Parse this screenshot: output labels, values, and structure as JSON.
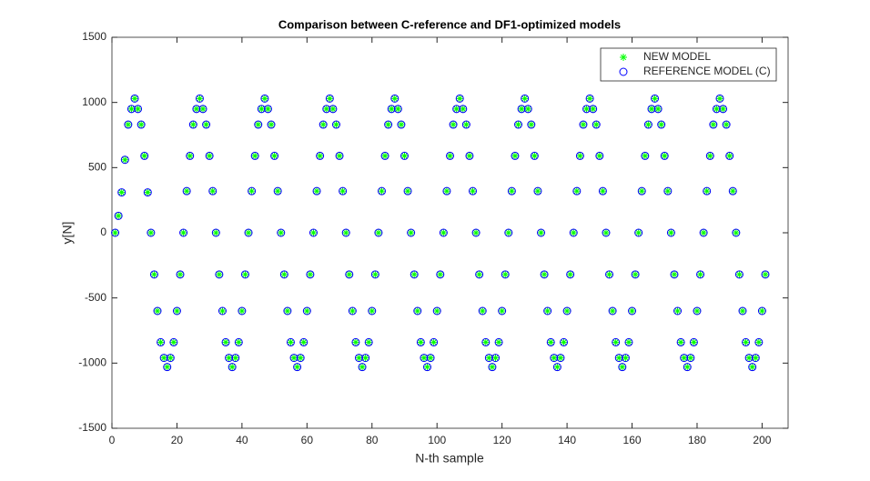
{
  "chart_data": {
    "type": "scatter",
    "title": "Comparison between C-reference and DF1-optimized models",
    "xlabel": "N-th sample",
    "ylabel": "y[N]",
    "xlim": [
      0,
      208
    ],
    "xticks": [
      0,
      20,
      40,
      60,
      80,
      100,
      120,
      140,
      160,
      180,
      200
    ],
    "ylim": [
      -1500,
      1500
    ],
    "yticks": [
      -1500,
      -1000,
      -500,
      0,
      500,
      1000,
      1500
    ],
    "legend": "top-right",
    "x": [
      1,
      2,
      3,
      4,
      5,
      6,
      7,
      8,
      9,
      10,
      11,
      12,
      13,
      14,
      15,
      16,
      17,
      18,
      19,
      20,
      21,
      22,
      23,
      24,
      25,
      26,
      27,
      28,
      29,
      30,
      31,
      32,
      33,
      34,
      35,
      36,
      37,
      38,
      39,
      40,
      41,
      42,
      43,
      44,
      45,
      46,
      47,
      48,
      49,
      50,
      51,
      52,
      53,
      54,
      55,
      56,
      57,
      58,
      59,
      60,
      61,
      62,
      63,
      64,
      65,
      66,
      67,
      68,
      69,
      70,
      71,
      72,
      73,
      74,
      75,
      76,
      77,
      78,
      79,
      80,
      81,
      82,
      83,
      84,
      85,
      86,
      87,
      88,
      89,
      90,
      91,
      92,
      93,
      94,
      95,
      96,
      97,
      98,
      99,
      100,
      101,
      102,
      103,
      104,
      105,
      106,
      107,
      108,
      109,
      110,
      111,
      112,
      113,
      114,
      115,
      116,
      117,
      118,
      119,
      120,
      121,
      122,
      123,
      124,
      125,
      126,
      127,
      128,
      129,
      130,
      131,
      132,
      133,
      134,
      135,
      136,
      137,
      138,
      139,
      140,
      141,
      142,
      143,
      144,
      145,
      146,
      147,
      148,
      149,
      150,
      151,
      152,
      153,
      154,
      155,
      156,
      157,
      158,
      159,
      160,
      161,
      162,
      163,
      164,
      165,
      166,
      167,
      168,
      169,
      170,
      171,
      172,
      173,
      174,
      175,
      176,
      177,
      178,
      179,
      180,
      181,
      182,
      183,
      184,
      185,
      186,
      187,
      188,
      189,
      190,
      191,
      192,
      193,
      194,
      195,
      196,
      197,
      198,
      199,
      200,
      201
    ],
    "series": [
      {
        "name": "NEW MODEL",
        "color": "#00ff00",
        "marker": "asterisk",
        "values": [
          0,
          130,
          310,
          560,
          830,
          950,
          1030,
          950,
          830,
          590,
          310,
          0,
          -320,
          -600,
          -840,
          -960,
          -1030,
          -960,
          -840,
          -600,
          -320,
          0,
          320,
          590,
          830,
          950,
          1030,
          950,
          830,
          590,
          320,
          0,
          -320,
          -600,
          -840,
          -960,
          -1030,
          -960,
          -840,
          -600,
          -320,
          0,
          320,
          590,
          830,
          950,
          1030,
          950,
          830,
          590,
          320,
          0,
          -320,
          -600,
          -840,
          -960,
          -1030,
          -960,
          -840,
          -600,
          -320,
          0,
          320,
          590,
          830,
          950,
          1030,
          950,
          830,
          590,
          320,
          0,
          -320,
          -600,
          -840,
          -960,
          -1030,
          -960,
          -840,
          -600,
          -320,
          0,
          320,
          590,
          830,
          950,
          1030,
          950,
          830,
          590,
          320,
          0,
          -320,
          -600,
          -840,
          -960,
          -1030,
          -960,
          -840,
          -600,
          -320,
          0,
          320,
          590,
          830,
          950,
          1030,
          950,
          830,
          590,
          320,
          0,
          -320,
          -600,
          -840,
          -960,
          -1030,
          -960,
          -840,
          -600,
          -320,
          0,
          320,
          590,
          830,
          950,
          1030,
          950,
          830,
          590,
          320,
          0,
          -320,
          -600,
          -840,
          -960,
          -1030,
          -960,
          -840,
          -600,
          -320,
          0,
          320,
          590,
          830,
          950,
          1030,
          950,
          830,
          590,
          320,
          0,
          -320,
          -600,
          -840,
          -960,
          -1030,
          -960,
          -840,
          -600,
          -320,
          0,
          320,
          590,
          830,
          950,
          1030,
          950,
          830,
          590,
          320,
          0,
          -320,
          -600,
          -840,
          -960,
          -1030,
          -960,
          -840,
          -600,
          -320,
          0,
          320,
          590,
          830,
          950,
          1030,
          950,
          830,
          590,
          320,
          0,
          -320,
          -600,
          -840,
          -960,
          -1030,
          -960,
          -840,
          -600,
          -320
        ]
      },
      {
        "name": "REFERENCE MODEL (C)",
        "color": "#0000ff",
        "marker": "circle",
        "values": [
          0,
          130,
          310,
          560,
          830,
          950,
          1030,
          950,
          830,
          590,
          310,
          0,
          -320,
          -600,
          -840,
          -960,
          -1030,
          -960,
          -840,
          -600,
          -320,
          0,
          320,
          590,
          830,
          950,
          1030,
          950,
          830,
          590,
          320,
          0,
          -320,
          -600,
          -840,
          -960,
          -1030,
          -960,
          -840,
          -600,
          -320,
          0,
          320,
          590,
          830,
          950,
          1030,
          950,
          830,
          590,
          320,
          0,
          -320,
          -600,
          -840,
          -960,
          -1030,
          -960,
          -840,
          -600,
          -320,
          0,
          320,
          590,
          830,
          950,
          1030,
          950,
          830,
          590,
          320,
          0,
          -320,
          -600,
          -840,
          -960,
          -1030,
          -960,
          -840,
          -600,
          -320,
          0,
          320,
          590,
          830,
          950,
          1030,
          950,
          830,
          590,
          320,
          0,
          -320,
          -600,
          -840,
          -960,
          -1030,
          -960,
          -840,
          -600,
          -320,
          0,
          320,
          590,
          830,
          950,
          1030,
          950,
          830,
          590,
          320,
          0,
          -320,
          -600,
          -840,
          -960,
          -1030,
          -960,
          -840,
          -600,
          -320,
          0,
          320,
          590,
          830,
          950,
          1030,
          950,
          830,
          590,
          320,
          0,
          -320,
          -600,
          -840,
          -960,
          -1030,
          -960,
          -840,
          -600,
          -320,
          0,
          320,
          590,
          830,
          950,
          1030,
          950,
          830,
          590,
          320,
          0,
          -320,
          -600,
          -840,
          -960,
          -1030,
          -960,
          -840,
          -600,
          -320,
          0,
          320,
          590,
          830,
          950,
          1030,
          950,
          830,
          590,
          320,
          0,
          -320,
          -600,
          -840,
          -960,
          -1030,
          -960,
          -840,
          -600,
          -320,
          0,
          320,
          590,
          830,
          950,
          1030,
          950,
          830,
          590,
          320,
          0,
          -320,
          -600,
          -840,
          -960,
          -1030,
          -960,
          -840,
          -600,
          -320
        ]
      }
    ]
  }
}
